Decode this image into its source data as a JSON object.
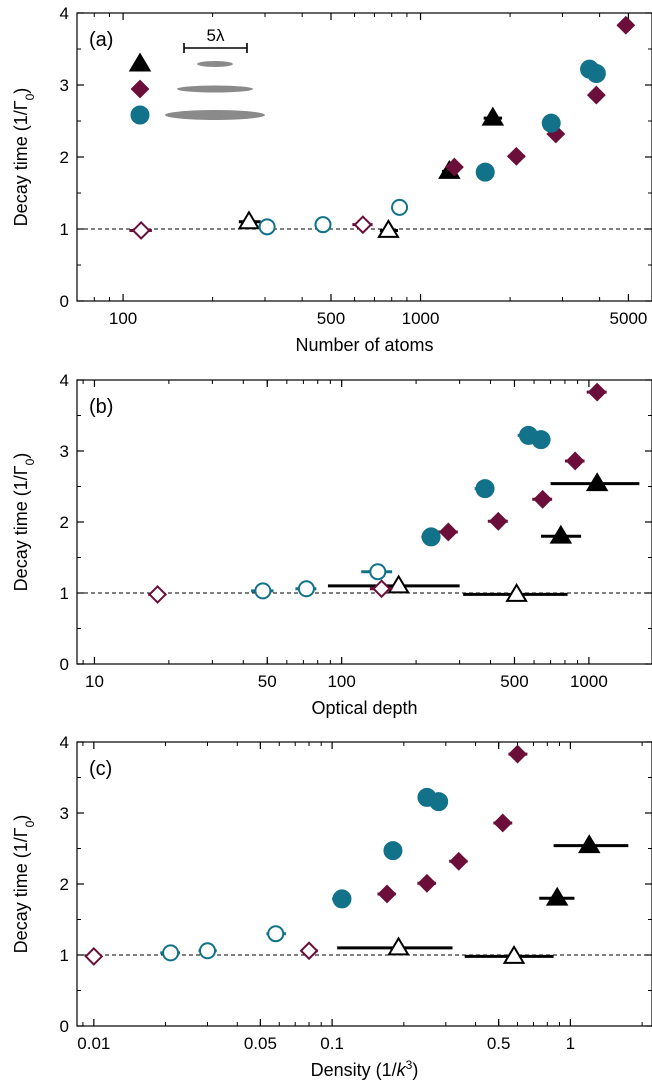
{
  "colors": {
    "black": "#000000",
    "maroon": "#6b0f3a",
    "teal": "#12728a",
    "cloud": "#8a8a8a"
  },
  "chart_data": [
    {
      "type": "scatter",
      "panel_label": "(a)",
      "xlabel": "Number of atoms",
      "ylabel_main": "Decay time (1/Γ",
      "ylabel_sub": "0",
      "ylabel_end": ")",
      "xscale": "log",
      "xlim": [
        70,
        6000
      ],
      "ylim": [
        0,
        4
      ],
      "xticks": [
        100,
        500,
        1000,
        5000
      ],
      "xtick_labels": [
        "100",
        "500",
        "1000",
        "5000"
      ],
      "yticks": [
        0,
        1,
        2,
        3,
        4
      ],
      "ytick_labels": [
        "0",
        "1",
        "2",
        "3",
        "4"
      ],
      "reference_line_y": 1,
      "legend": {
        "scale_label": "5λ",
        "entries": [
          {
            "marker": "triangle",
            "color": "black",
            "cloud_size": "small"
          },
          {
            "marker": "diamond",
            "color": "maroon",
            "cloud_size": "medium"
          },
          {
            "marker": "circle",
            "color": "teal",
            "cloud_size": "large"
          }
        ]
      },
      "series": [
        {
          "marker": "triangle",
          "color": "black",
          "points": [
            {
              "x": 265,
              "y": 1.1,
              "xerr": [
                245,
                290
              ],
              "filled": false
            },
            {
              "x": 780,
              "y": 0.98,
              "xerr": [
                730,
                840
              ],
              "filled": false
            },
            {
              "x": 1250,
              "y": 1.8,
              "xerr": [
                1180,
                1330
              ],
              "filled": true
            },
            {
              "x": 1750,
              "y": 2.54,
              "xerr": [
                1630,
                1880
              ],
              "filled": true
            }
          ]
        },
        {
          "marker": "diamond",
          "color": "maroon",
          "points": [
            {
              "x": 115,
              "y": 0.98,
              "xerr": [
                105,
                125
              ],
              "filled": false
            },
            {
              "x": 640,
              "y": 1.06,
              "xerr": [
                590,
                690
              ],
              "filled": false
            },
            {
              "x": 1300,
              "y": 1.86,
              "xerr": [
                1230,
                1380
              ],
              "filled": true
            },
            {
              "x": 2100,
              "y": 2.01,
              "xerr": [
                1970,
                2240
              ],
              "filled": true
            },
            {
              "x": 2850,
              "y": 2.32,
              "xerr": [
                2680,
                3030
              ],
              "filled": true
            },
            {
              "x": 3900,
              "y": 2.86,
              "xerr": [
                3680,
                4130
              ],
              "filled": true
            },
            {
              "x": 4900,
              "y": 3.83,
              "xerr": [
                4600,
                5200
              ],
              "filled": true
            }
          ]
        },
        {
          "marker": "circle",
          "color": "teal",
          "points": [
            {
              "x": 305,
              "y": 1.03,
              "xerr": [
                285,
                325
              ],
              "filled": false
            },
            {
              "x": 470,
              "y": 1.06,
              "xerr": [
                440,
                500
              ],
              "filled": false
            },
            {
              "x": 850,
              "y": 1.3,
              "xerr": [
                800,
                900
              ],
              "filled": false
            },
            {
              "x": 1650,
              "y": 1.79,
              "xerr": [
                1550,
                1760
              ],
              "filled": true
            },
            {
              "x": 2750,
              "y": 2.47,
              "xerr": [
                2590,
                2920
              ],
              "filled": true
            },
            {
              "x": 3700,
              "y": 3.22,
              "xerr": [
                3480,
                3930
              ],
              "filled": true
            },
            {
              "x": 3900,
              "y": 3.16,
              "xerr": [
                3680,
                4130
              ],
              "filled": true
            }
          ]
        }
      ]
    },
    {
      "type": "scatter",
      "panel_label": "(b)",
      "xlabel": "Optical depth",
      "ylabel_main": "Decay time (1/Γ",
      "ylabel_sub": "0",
      "ylabel_end": ")",
      "xscale": "log",
      "xlim": [
        8.5,
        1800
      ],
      "ylim": [
        0,
        4
      ],
      "xticks": [
        10,
        50,
        100,
        500,
        1000
      ],
      "xtick_labels": [
        "10",
        "50",
        "100",
        "500",
        "1000"
      ],
      "yticks": [
        0,
        1,
        2,
        3,
        4
      ],
      "ytick_labels": [
        "0",
        "1",
        "2",
        "3",
        "4"
      ],
      "reference_line_y": 1,
      "series": [
        {
          "marker": "triangle",
          "color": "black",
          "points": [
            {
              "x": 170,
              "y": 1.1,
              "xerr": [
                88,
                300
              ],
              "filled": false
            },
            {
              "x": 510,
              "y": 0.98,
              "xerr": [
                310,
                820
              ],
              "filled": false
            },
            {
              "x": 770,
              "y": 1.8,
              "xerr": [
                640,
                930
              ],
              "filled": true
            },
            {
              "x": 1080,
              "y": 2.54,
              "xerr": [
                700,
                1600
              ],
              "filled": true
            }
          ]
        },
        {
          "marker": "diamond",
          "color": "maroon",
          "points": [
            {
              "x": 18,
              "y": 0.98,
              "xerr": [
                16.5,
                19.5
              ],
              "filled": false
            },
            {
              "x": 145,
              "y": 1.06,
              "xerr": [
                130,
                160
              ],
              "filled": false
            },
            {
              "x": 270,
              "y": 1.86,
              "xerr": [
                245,
                295
              ],
              "filled": true
            },
            {
              "x": 430,
              "y": 2.01,
              "xerr": [
                390,
                470
              ],
              "filled": true
            },
            {
              "x": 650,
              "y": 2.32,
              "xerr": [
                590,
                710
              ],
              "filled": true
            },
            {
              "x": 880,
              "y": 2.86,
              "xerr": [
                800,
                960
              ],
              "filled": true
            },
            {
              "x": 1080,
              "y": 3.83,
              "xerr": [
                980,
                1180
              ],
              "filled": true
            }
          ]
        },
        {
          "marker": "circle",
          "color": "teal",
          "points": [
            {
              "x": 48,
              "y": 1.03,
              "xerr": [
                43,
                53
              ],
              "filled": false
            },
            {
              "x": 72,
              "y": 1.06,
              "xerr": [
                65,
                79
              ],
              "filled": false
            },
            {
              "x": 140,
              "y": 1.3,
              "xerr": [
                120,
                160
              ],
              "filled": false
            },
            {
              "x": 230,
              "y": 1.79,
              "xerr": [
                210,
                250
              ],
              "filled": true
            },
            {
              "x": 380,
              "y": 2.47,
              "xerr": [
                345,
                415
              ],
              "filled": true
            },
            {
              "x": 570,
              "y": 3.22,
              "xerr": [
                515,
                625
              ],
              "filled": true
            },
            {
              "x": 640,
              "y": 3.16,
              "xerr": [
                580,
                700
              ],
              "filled": true
            }
          ]
        }
      ]
    },
    {
      "type": "scatter",
      "panel_label": "(c)",
      "xlabel_main": "Density (1/",
      "xlabel_k": "k",
      "xlabel_sup": "3",
      "xlabel_end": ")",
      "ylabel_main": "Decay time (1/Γ",
      "ylabel_sub": "0",
      "ylabel_end": ")",
      "xscale": "log",
      "xlim": [
        0.0085,
        2.2
      ],
      "ylim": [
        0,
        4
      ],
      "xticks": [
        0.01,
        0.05,
        0.1,
        0.5,
        1
      ],
      "xtick_labels": [
        "0.01",
        "0.05",
        "0.1",
        "0.5",
        "1"
      ],
      "yticks": [
        0,
        1,
        2,
        3,
        4
      ],
      "ytick_labels": [
        "0",
        "1",
        "2",
        "3",
        "4"
      ],
      "reference_line_y": 1,
      "series": [
        {
          "marker": "triangle",
          "color": "black",
          "points": [
            {
              "x": 0.19,
              "y": 1.1,
              "xerr": [
                0.105,
                0.32
              ],
              "filled": false
            },
            {
              "x": 0.58,
              "y": 0.98,
              "xerr": [
                0.36,
                0.85
              ],
              "filled": false
            },
            {
              "x": 0.88,
              "y": 1.8,
              "xerr": [
                0.74,
                1.04
              ],
              "filled": true
            },
            {
              "x": 1.2,
              "y": 2.54,
              "xerr": [
                0.85,
                1.75
              ],
              "filled": true
            }
          ]
        },
        {
          "marker": "diamond",
          "color": "maroon",
          "points": [
            {
              "x": 0.01,
              "y": 0.98,
              "xerr": [
                0.0093,
                0.0107
              ],
              "filled": false
            },
            {
              "x": 0.08,
              "y": 1.06,
              "xerr": [
                0.074,
                0.087
              ],
              "filled": false
            },
            {
              "x": 0.17,
              "y": 1.86,
              "xerr": [
                0.155,
                0.185
              ],
              "filled": true
            },
            {
              "x": 0.25,
              "y": 2.01,
              "xerr": [
                0.228,
                0.273
              ],
              "filled": true
            },
            {
              "x": 0.34,
              "y": 2.32,
              "xerr": [
                0.31,
                0.37
              ],
              "filled": true
            },
            {
              "x": 0.52,
              "y": 2.86,
              "xerr": [
                0.475,
                0.57
              ],
              "filled": true
            },
            {
              "x": 0.6,
              "y": 3.83,
              "xerr": [
                0.55,
                0.66
              ],
              "filled": true
            }
          ]
        },
        {
          "marker": "circle",
          "color": "teal",
          "points": [
            {
              "x": 0.021,
              "y": 1.03,
              "xerr": [
                0.019,
                0.023
              ],
              "filled": false
            },
            {
              "x": 0.03,
              "y": 1.06,
              "xerr": [
                0.0275,
                0.0328
              ],
              "filled": false
            },
            {
              "x": 0.058,
              "y": 1.3,
              "xerr": [
                0.053,
                0.064
              ],
              "filled": false
            },
            {
              "x": 0.11,
              "y": 1.79,
              "xerr": [
                0.1,
                0.12
              ],
              "filled": true
            },
            {
              "x": 0.18,
              "y": 2.47,
              "xerr": [
                0.165,
                0.196
              ],
              "filled": true
            },
            {
              "x": 0.25,
              "y": 3.22,
              "xerr": [
                0.229,
                0.273
              ],
              "filled": true
            },
            {
              "x": 0.28,
              "y": 3.16,
              "xerr": [
                0.257,
                0.305
              ],
              "filled": true
            }
          ]
        }
      ]
    }
  ]
}
